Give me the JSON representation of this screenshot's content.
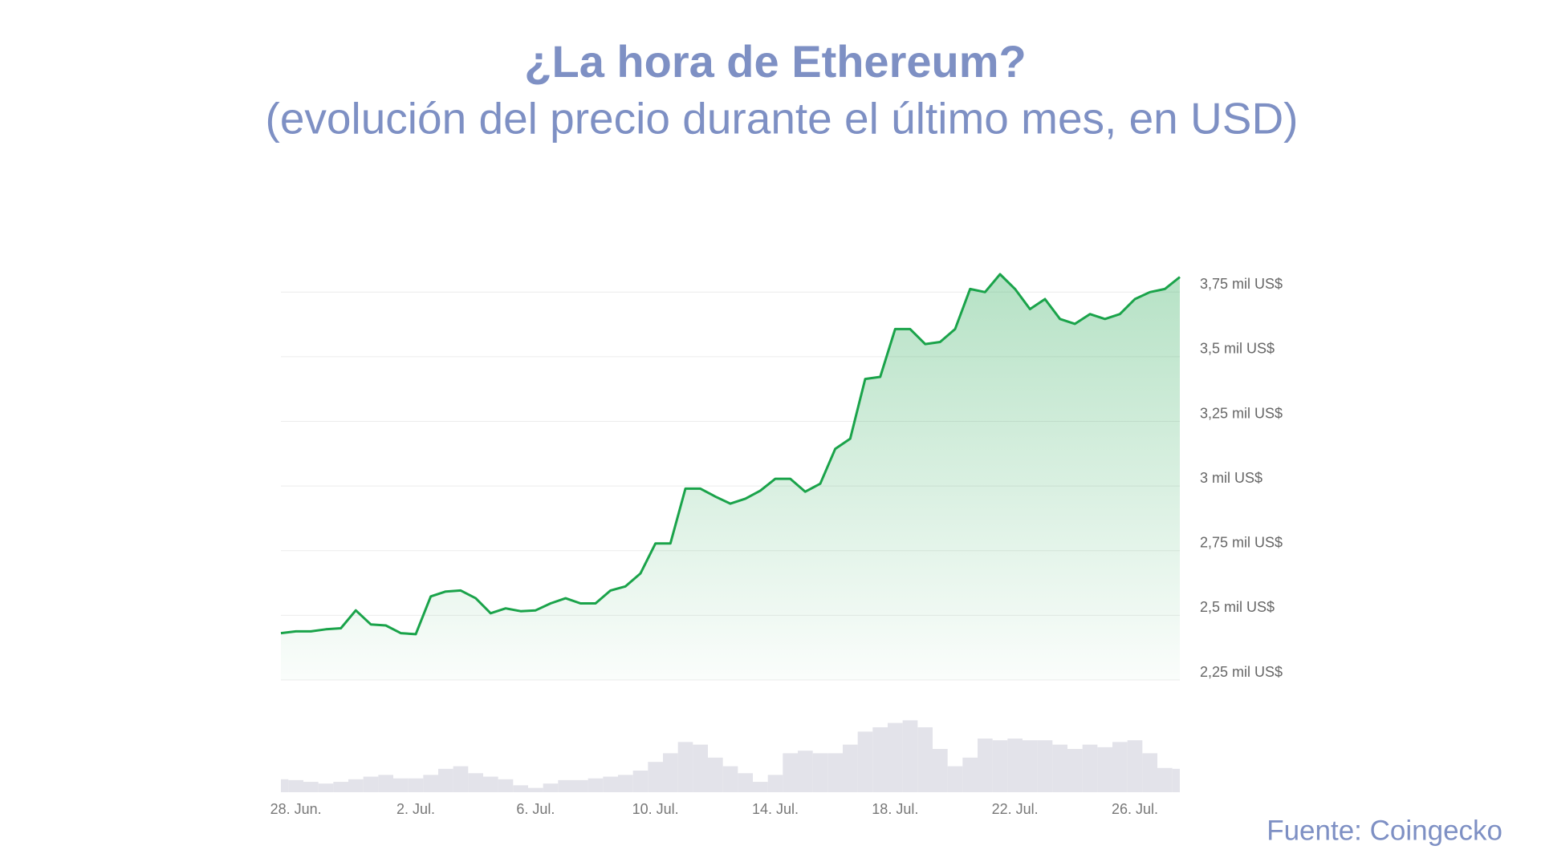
{
  "chart_data": {
    "type": "area",
    "title": "¿La hora de Ethereum?",
    "subtitle": "(evolución del precio durante el último mes, en USD)",
    "source": "Fuente: Coingecko",
    "categories": [
      null,
      "28. Jun.",
      null,
      null,
      null,
      null,
      null,
      null,
      null,
      "2. Jul.",
      null,
      null,
      null,
      null,
      null,
      null,
      null,
      "6. Jul.",
      null,
      null,
      null,
      null,
      null,
      null,
      null,
      "10. Jul.",
      null,
      null,
      null,
      null,
      null,
      null,
      null,
      "14. Jul.",
      null,
      null,
      null,
      null,
      null,
      null,
      null,
      "18. Jul.",
      null,
      null,
      null,
      null,
      null,
      null,
      null,
      "22. Jul.",
      null,
      null,
      null,
      null,
      null,
      null,
      null,
      "26. Jul.",
      null,
      null,
      null
    ],
    "series": [
      {
        "color": "#1aa34a",
        "values": [
          2431,
          2438,
          2438,
          2446,
          2450,
          2519,
          2465,
          2461,
          2431,
          2427,
          2573,
          2592,
          2596,
          2566,
          2508,
          2527,
          2516,
          2519,
          2546,
          2566,
          2546,
          2546,
          2596,
          2612,
          2662,
          2778,
          2778,
          2990,
          2990,
          2959,
          2932,
          2951,
          2982,
          3028,
          3028,
          2978,
          3009,
          3144,
          3183,
          3414,
          3422,
          3607,
          3607,
          3549,
          3557,
          3607,
          3762,
          3750,
          3819,
          3762,
          3684,
          3723,
          3646,
          3627,
          3665,
          3646,
          3665,
          3723,
          3750,
          3762,
          3808
        ]
      }
    ],
    "volume": {
      "color": "#e3e3ea",
      "ylim": [
        0,
        100
      ],
      "values": [
        15,
        14,
        12,
        10,
        12,
        15,
        18,
        20,
        16,
        16,
        20,
        27,
        30,
        22,
        18,
        15,
        8,
        5,
        10,
        14,
        14,
        16,
        18,
        20,
        25,
        35,
        45,
        58,
        55,
        40,
        30,
        22,
        12,
        20,
        45,
        48,
        45,
        45,
        55,
        70,
        75,
        80,
        83,
        75,
        50,
        30,
        40,
        62,
        60,
        62,
        60,
        60,
        55,
        50,
        55,
        52,
        58,
        60,
        45,
        28,
        27
      ]
    },
    "ylim": [
      2250,
      3850
    ],
    "yticks": [
      {
        "value": 2250,
        "label": "2,25 mil US$"
      },
      {
        "value": 2500,
        "label": "2,5 mil US$"
      },
      {
        "value": 2750,
        "label": "2,75 mil US$"
      },
      {
        "value": 3000,
        "label": "3 mil US$"
      },
      {
        "value": 3250,
        "label": "3,25 mil US$"
      },
      {
        "value": 3500,
        "label": "3,5 mil US$"
      },
      {
        "value": 3750,
        "label": "3,75 mil US$"
      }
    ],
    "grid": true
  }
}
